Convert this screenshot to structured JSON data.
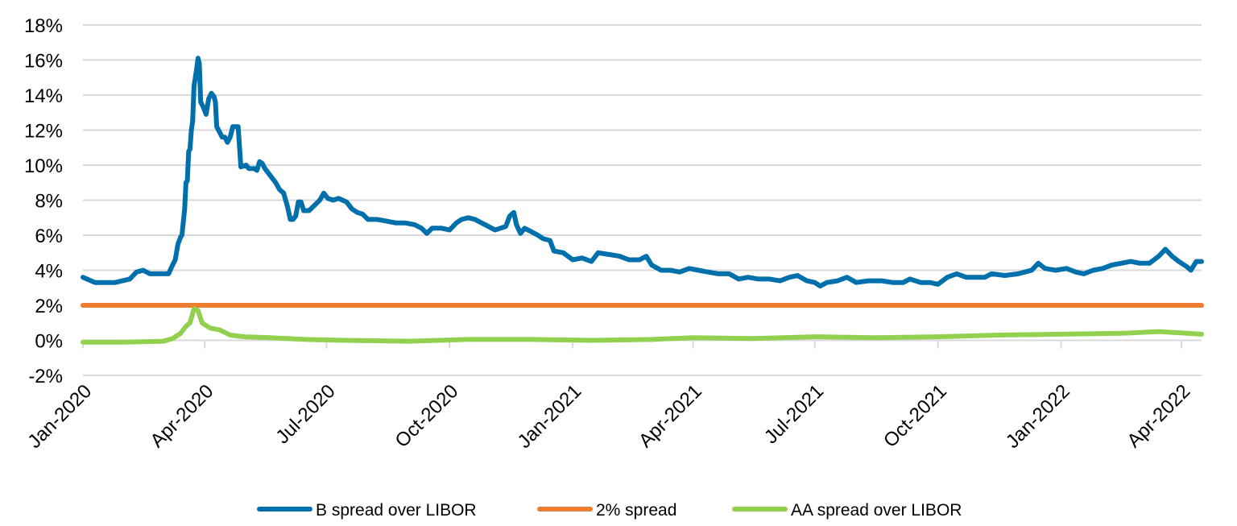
{
  "chart_data": {
    "type": "line",
    "title": "",
    "xlabel": "",
    "ylabel": "",
    "ylim": [
      -2,
      18
    ],
    "y_ticks": [
      "-2%",
      "0%",
      "2%",
      "4%",
      "6%",
      "8%",
      "10%",
      "12%",
      "14%",
      "16%",
      "18%"
    ],
    "y_tick_values": [
      -2,
      0,
      2,
      4,
      6,
      8,
      10,
      12,
      14,
      16,
      18
    ],
    "xlim": [
      "2020-01-01",
      "2022-04-16"
    ],
    "x_ticks": [
      "Jan-2020",
      "Apr-2020",
      "Jul-2020",
      "Oct-2020",
      "Jan-2021",
      "Apr-2021",
      "Jul-2021",
      "Oct-2021",
      "Jan-2022",
      "Apr-2022"
    ],
    "x_tick_dates": [
      "2020-01-01",
      "2020-04-01",
      "2020-07-01",
      "2020-10-01",
      "2021-01-01",
      "2021-04-01",
      "2021-07-01",
      "2021-10-01",
      "2022-01-01",
      "2022-04-01"
    ],
    "grid": "horizontal",
    "legend_position": "bottom",
    "series": [
      {
        "name": "B spread over LIBOR",
        "color": "#0070AD",
        "points": [
          [
            "2020-01-01",
            3.6
          ],
          [
            "2020-01-10",
            3.3
          ],
          [
            "2020-01-25",
            3.3
          ],
          [
            "2020-02-05",
            3.5
          ],
          [
            "2020-02-10",
            3.9
          ],
          [
            "2020-02-15",
            4.0
          ],
          [
            "2020-02-20",
            3.8
          ],
          [
            "2020-02-29",
            3.8
          ],
          [
            "2020-03-05",
            3.8
          ],
          [
            "2020-03-08",
            4.3
          ],
          [
            "2020-03-10",
            4.6
          ],
          [
            "2020-03-12",
            5.5
          ],
          [
            "2020-03-14",
            5.9
          ],
          [
            "2020-03-15",
            6.0
          ],
          [
            "2020-03-17",
            7.5
          ],
          [
            "2020-03-18",
            9.0
          ],
          [
            "2020-03-19",
            9.1
          ],
          [
            "2020-03-20",
            10.8
          ],
          [
            "2020-03-21",
            10.9
          ],
          [
            "2020-03-22",
            12.0
          ],
          [
            "2020-03-23",
            12.5
          ],
          [
            "2020-03-24",
            14.5
          ],
          [
            "2020-03-26",
            15.5
          ],
          [
            "2020-03-27",
            16.1
          ],
          [
            "2020-03-28",
            15.8
          ],
          [
            "2020-03-29",
            13.6
          ],
          [
            "2020-03-31",
            13.3
          ],
          [
            "2020-04-02",
            12.9
          ],
          [
            "2020-04-04",
            13.8
          ],
          [
            "2020-04-06",
            14.1
          ],
          [
            "2020-04-08",
            13.9
          ],
          [
            "2020-04-09",
            13.6
          ],
          [
            "2020-04-10",
            12.2
          ],
          [
            "2020-04-12",
            11.9
          ],
          [
            "2020-04-14",
            11.6
          ],
          [
            "2020-04-16",
            11.6
          ],
          [
            "2020-04-18",
            11.3
          ],
          [
            "2020-04-20",
            11.6
          ],
          [
            "2020-04-22",
            12.2
          ],
          [
            "2020-04-26",
            12.2
          ],
          [
            "2020-04-28",
            9.9
          ],
          [
            "2020-05-02",
            10.0
          ],
          [
            "2020-05-04",
            9.8
          ],
          [
            "2020-05-08",
            9.8
          ],
          [
            "2020-05-10",
            9.7
          ],
          [
            "2020-05-12",
            10.2
          ],
          [
            "2020-05-14",
            10.1
          ],
          [
            "2020-05-16",
            9.8
          ],
          [
            "2020-05-20",
            9.4
          ],
          [
            "2020-05-24",
            9.0
          ],
          [
            "2020-05-27",
            8.6
          ],
          [
            "2020-05-30",
            8.4
          ],
          [
            "2020-06-02",
            7.6
          ],
          [
            "2020-06-04",
            6.9
          ],
          [
            "2020-06-06",
            6.9
          ],
          [
            "2020-06-08",
            7.1
          ],
          [
            "2020-06-10",
            7.9
          ],
          [
            "2020-06-12",
            7.9
          ],
          [
            "2020-06-14",
            7.4
          ],
          [
            "2020-06-18",
            7.4
          ],
          [
            "2020-06-22",
            7.7
          ],
          [
            "2020-06-26",
            8.0
          ],
          [
            "2020-06-29",
            8.4
          ],
          [
            "2020-07-02",
            8.1
          ],
          [
            "2020-07-06",
            8.0
          ],
          [
            "2020-07-10",
            8.1
          ],
          [
            "2020-07-16",
            7.9
          ],
          [
            "2020-07-20",
            7.5
          ],
          [
            "2020-07-24",
            7.3
          ],
          [
            "2020-07-28",
            7.2
          ],
          [
            "2020-08-01",
            6.9
          ],
          [
            "2020-08-08",
            6.9
          ],
          [
            "2020-08-15",
            6.8
          ],
          [
            "2020-08-22",
            6.7
          ],
          [
            "2020-08-29",
            6.7
          ],
          [
            "2020-09-05",
            6.6
          ],
          [
            "2020-09-10",
            6.4
          ],
          [
            "2020-09-14",
            6.1
          ],
          [
            "2020-09-18",
            6.4
          ],
          [
            "2020-09-25",
            6.4
          ],
          [
            "2020-10-01",
            6.3
          ],
          [
            "2020-10-06",
            6.7
          ],
          [
            "2020-10-10",
            6.9
          ],
          [
            "2020-10-15",
            7.0
          ],
          [
            "2020-10-20",
            6.9
          ],
          [
            "2020-10-25",
            6.7
          ],
          [
            "2020-10-30",
            6.5
          ],
          [
            "2020-11-04",
            6.3
          ],
          [
            "2020-11-08",
            6.4
          ],
          [
            "2020-11-12",
            6.5
          ],
          [
            "2020-11-15",
            7.1
          ],
          [
            "2020-11-18",
            7.3
          ],
          [
            "2020-11-20",
            6.6
          ],
          [
            "2020-11-23",
            6.1
          ],
          [
            "2020-11-26",
            6.4
          ],
          [
            "2020-12-01",
            6.2
          ],
          [
            "2020-12-06",
            6.0
          ],
          [
            "2020-12-10",
            5.8
          ],
          [
            "2020-12-15",
            5.7
          ],
          [
            "2020-12-18",
            5.1
          ],
          [
            "2020-12-25",
            5.0
          ],
          [
            "2021-01-01",
            4.6
          ],
          [
            "2021-01-08",
            4.7
          ],
          [
            "2021-01-15",
            4.5
          ],
          [
            "2021-01-20",
            5.0
          ],
          [
            "2021-01-28",
            4.9
          ],
          [
            "2021-02-05",
            4.8
          ],
          [
            "2021-02-12",
            4.6
          ],
          [
            "2021-02-20",
            4.6
          ],
          [
            "2021-02-25",
            4.8
          ],
          [
            "2021-03-01",
            4.3
          ],
          [
            "2021-03-08",
            4.0
          ],
          [
            "2021-03-15",
            4.0
          ],
          [
            "2021-03-22",
            3.9
          ],
          [
            "2021-03-29",
            4.1
          ],
          [
            "2021-04-05",
            4.0
          ],
          [
            "2021-04-12",
            3.9
          ],
          [
            "2021-04-20",
            3.8
          ],
          [
            "2021-04-28",
            3.8
          ],
          [
            "2021-05-05",
            3.5
          ],
          [
            "2021-05-12",
            3.6
          ],
          [
            "2021-05-20",
            3.5
          ],
          [
            "2021-05-28",
            3.5
          ],
          [
            "2021-06-05",
            3.4
          ],
          [
            "2021-06-12",
            3.6
          ],
          [
            "2021-06-18",
            3.7
          ],
          [
            "2021-06-25",
            3.4
          ],
          [
            "2021-07-01",
            3.3
          ],
          [
            "2021-07-05",
            3.1
          ],
          [
            "2021-07-10",
            3.3
          ],
          [
            "2021-07-18",
            3.4
          ],
          [
            "2021-07-25",
            3.6
          ],
          [
            "2021-08-01",
            3.3
          ],
          [
            "2021-08-10",
            3.4
          ],
          [
            "2021-08-20",
            3.4
          ],
          [
            "2021-08-28",
            3.3
          ],
          [
            "2021-09-05",
            3.3
          ],
          [
            "2021-09-10",
            3.5
          ],
          [
            "2021-09-18",
            3.3
          ],
          [
            "2021-09-25",
            3.3
          ],
          [
            "2021-10-01",
            3.2
          ],
          [
            "2021-10-08",
            3.6
          ],
          [
            "2021-10-15",
            3.8
          ],
          [
            "2021-10-22",
            3.6
          ],
          [
            "2021-10-30",
            3.6
          ],
          [
            "2021-11-05",
            3.6
          ],
          [
            "2021-11-10",
            3.8
          ],
          [
            "2021-11-20",
            3.7
          ],
          [
            "2021-11-30",
            3.8
          ],
          [
            "2021-12-05",
            3.9
          ],
          [
            "2021-12-10",
            4.0
          ],
          [
            "2021-12-15",
            4.4
          ],
          [
            "2021-12-20",
            4.1
          ],
          [
            "2021-12-28",
            4.0
          ],
          [
            "2022-01-05",
            4.1
          ],
          [
            "2022-01-12",
            3.9
          ],
          [
            "2022-01-18",
            3.8
          ],
          [
            "2022-01-25",
            4.0
          ],
          [
            "2022-02-01",
            4.1
          ],
          [
            "2022-02-08",
            4.3
          ],
          [
            "2022-02-15",
            4.4
          ],
          [
            "2022-02-22",
            4.5
          ],
          [
            "2022-03-01",
            4.4
          ],
          [
            "2022-03-08",
            4.4
          ],
          [
            "2022-03-15",
            4.8
          ],
          [
            "2022-03-20",
            5.2
          ],
          [
            "2022-03-25",
            4.8
          ],
          [
            "2022-03-30",
            4.5
          ],
          [
            "2022-04-05",
            4.2
          ],
          [
            "2022-04-08",
            4.0
          ],
          [
            "2022-04-12",
            4.5
          ],
          [
            "2022-04-16",
            4.5
          ]
        ]
      },
      {
        "name": "2% spread",
        "color": "#ED7D31",
        "points": [
          [
            "2020-01-01",
            2.0
          ],
          [
            "2022-04-16",
            2.0
          ]
        ]
      },
      {
        "name": "AA spread over LIBOR",
        "color": "#92D050",
        "points": [
          [
            "2020-01-01",
            -0.1
          ],
          [
            "2020-02-01",
            -0.1
          ],
          [
            "2020-03-01",
            -0.05
          ],
          [
            "2020-03-08",
            0.1
          ],
          [
            "2020-03-14",
            0.4
          ],
          [
            "2020-03-18",
            0.8
          ],
          [
            "2020-03-21",
            1.0
          ],
          [
            "2020-03-24",
            1.8
          ],
          [
            "2020-03-27",
            1.7
          ],
          [
            "2020-03-30",
            1.0
          ],
          [
            "2020-04-05",
            0.7
          ],
          [
            "2020-04-12",
            0.6
          ],
          [
            "2020-04-20",
            0.3
          ],
          [
            "2020-05-01",
            0.2
          ],
          [
            "2020-05-20",
            0.15
          ],
          [
            "2020-06-15",
            0.05
          ],
          [
            "2020-07-15",
            0.0
          ],
          [
            "2020-09-01",
            -0.05
          ],
          [
            "2020-10-15",
            0.05
          ],
          [
            "2020-12-01",
            0.05
          ],
          [
            "2021-01-15",
            0.0
          ],
          [
            "2021-03-01",
            0.05
          ],
          [
            "2021-04-01",
            0.15
          ],
          [
            "2021-05-15",
            0.1
          ],
          [
            "2021-07-01",
            0.2
          ],
          [
            "2021-08-15",
            0.15
          ],
          [
            "2021-10-01",
            0.2
          ],
          [
            "2021-11-15",
            0.3
          ],
          [
            "2022-01-01",
            0.35
          ],
          [
            "2022-02-15",
            0.4
          ],
          [
            "2022-03-15",
            0.5
          ],
          [
            "2022-04-05",
            0.4
          ],
          [
            "2022-04-16",
            0.35
          ]
        ]
      }
    ]
  }
}
